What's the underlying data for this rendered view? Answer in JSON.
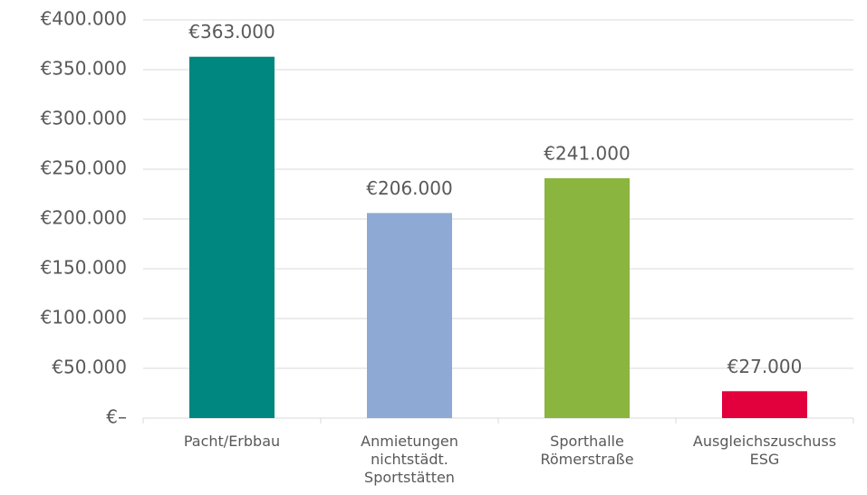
{
  "chart_data": {
    "type": "bar",
    "categories": [
      "Pacht/Erbbau",
      "Anmietungen\nnichtstädt.\nSportstätten",
      "Sporthalle\nRömerstraße",
      "Ausgleichszuschuss\nESG"
    ],
    "values": [
      363000,
      206000,
      241000,
      27000
    ],
    "value_labels": [
      "€363.000",
      "€206.000",
      "€241.000",
      "€27.000"
    ],
    "colors": [
      "#00877f",
      "#8ea9d3",
      "#8ab53f",
      "#e2003d"
    ],
    "ylim": [
      0,
      400000
    ],
    "yticks": [
      {
        "value": 0,
        "label": "€–"
      },
      {
        "value": 50000,
        "label": "€50.000"
      },
      {
        "value": 100000,
        "label": "€100.000"
      },
      {
        "value": 150000,
        "label": "€150.000"
      },
      {
        "value": 200000,
        "label": "€200.000"
      },
      {
        "value": 250000,
        "label": "€250.000"
      },
      {
        "value": 300000,
        "label": "€300.000"
      },
      {
        "value": 350000,
        "label": "€350.000"
      },
      {
        "value": 400000,
        "label": "€400.000"
      }
    ],
    "grid": true
  }
}
